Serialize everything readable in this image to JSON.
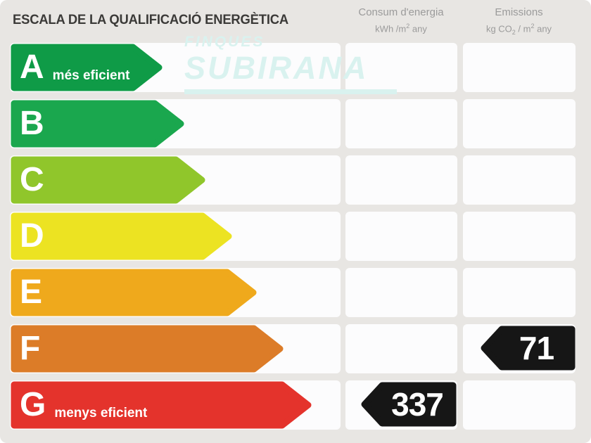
{
  "header": {
    "title": "ESCALA DE LA QUALIFICACIÓ ENERGÈTICA",
    "columns": {
      "consumption": {
        "title": "Consum d'energia",
        "unit": {
          "pre": "kWh /m",
          "sup": "2",
          "post": " any"
        }
      },
      "emissions": {
        "title": "Emissions",
        "unit": {
          "pre": "kg CO",
          "sub": "2",
          "mid": " / m",
          "sup": "2",
          "post": " any"
        }
      }
    }
  },
  "watermark": {
    "line1": "FINQUES",
    "line2": "SUBIRANA",
    "color": "#d9f2ef"
  },
  "scale": {
    "rows": [
      {
        "grade": "A",
        "label": "més eficient",
        "color": "#0f9b47",
        "arrow_width": 216
      },
      {
        "grade": "B",
        "label": "",
        "color": "#1aa74e",
        "arrow_width": 247
      },
      {
        "grade": "C",
        "label": "",
        "color": "#90c62b",
        "arrow_width": 277
      },
      {
        "grade": "D",
        "label": "",
        "color": "#ece322",
        "arrow_width": 315
      },
      {
        "grade": "E",
        "label": "",
        "color": "#efa91c",
        "arrow_width": 350
      },
      {
        "grade": "F",
        "label": "",
        "color": "#dc7c28",
        "arrow_width": 388
      },
      {
        "grade": "G",
        "label": "menys eficient",
        "color": "#e4332c",
        "arrow_width": 428
      }
    ]
  },
  "values": {
    "arrow_color": "#161616",
    "consumption": {
      "value": "337",
      "grade": "G"
    },
    "emissions": {
      "value": "71",
      "grade": "F"
    }
  },
  "chart_data": {
    "type": "bar",
    "title": "ESCALA DE LA QUALIFICACIÓ ENERGÈTICA",
    "categories": [
      "A",
      "B",
      "C",
      "D",
      "E",
      "F",
      "G"
    ],
    "category_labels": {
      "A": "més eficient",
      "G": "menys eficient"
    },
    "bar_colors": [
      "#0f9b47",
      "#1aa74e",
      "#90c62b",
      "#ece322",
      "#efa91c",
      "#dc7c28",
      "#e4332c"
    ],
    "relative_bar_lengths": [
      216,
      247,
      277,
      315,
      350,
      388,
      428
    ],
    "columns": [
      "Consum d'energia (kWh/m2 any)",
      "Emissions (kg CO2/m2 any)"
    ],
    "annotations": [
      {
        "metric": "Consum d'energia",
        "unit": "kWh/m2 any",
        "value": 337,
        "grade": "G"
      },
      {
        "metric": "Emissions",
        "unit": "kg CO2/m2 any",
        "value": 71,
        "grade": "F"
      }
    ],
    "legend_position": "none",
    "grid": false
  }
}
